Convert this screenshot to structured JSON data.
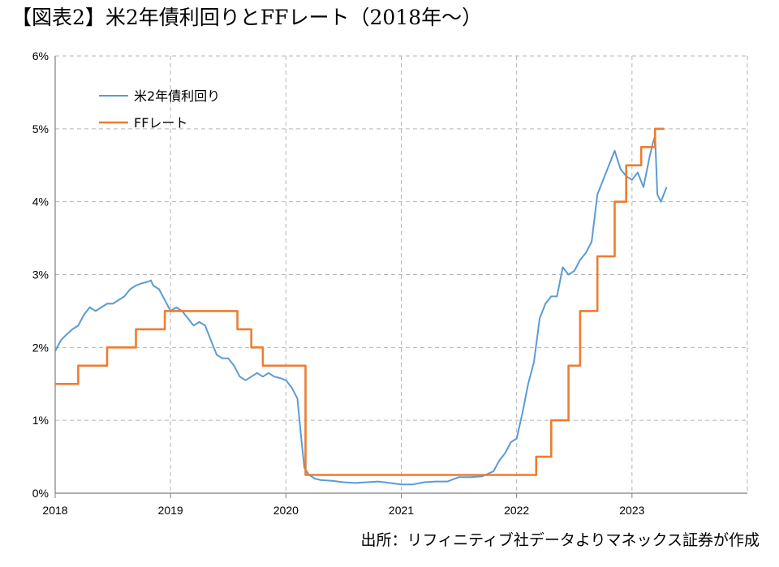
{
  "header": {
    "title": "【図表2】米2年債利回りとFFレート（2018年～）"
  },
  "footer": {
    "source": "出所：リフィニティブ社データよりマネックス証券が作成"
  },
  "chart_data": {
    "type": "line",
    "title": "【図表2】米2年債利回りとFFレート（2018年～）",
    "xlabel": "",
    "ylabel": "",
    "xlim": [
      2018,
      2024
    ],
    "ylim": [
      0,
      6
    ],
    "x_ticks": [
      "2018",
      "2019",
      "2020",
      "2021",
      "2022",
      "2023"
    ],
    "y_ticks": [
      "0%",
      "1%",
      "2%",
      "3%",
      "4%",
      "5%",
      "6%"
    ],
    "grid": true,
    "legend_position": "top-left",
    "series": [
      {
        "name": "米2年債利回り",
        "color": "#5b9bd5",
        "x": [
          2018.0,
          2018.05,
          2018.1,
          2018.15,
          2018.2,
          2018.25,
          2018.3,
          2018.35,
          2018.4,
          2018.45,
          2018.5,
          2018.55,
          2018.6,
          2018.65,
          2018.7,
          2018.75,
          2018.8,
          2018.83,
          2018.85,
          2018.9,
          2018.95,
          2019.0,
          2019.05,
          2019.1,
          2019.15,
          2019.2,
          2019.25,
          2019.3,
          2019.35,
          2019.4,
          2019.45,
          2019.5,
          2019.55,
          2019.6,
          2019.65,
          2019.7,
          2019.75,
          2019.8,
          2019.85,
          2019.9,
          2019.95,
          2020.0,
          2020.05,
          2020.1,
          2020.13,
          2020.16,
          2020.2,
          2020.25,
          2020.3,
          2020.4,
          2020.5,
          2020.6,
          2020.7,
          2020.8,
          2020.9,
          2021.0,
          2021.1,
          2021.2,
          2021.3,
          2021.4,
          2021.5,
          2021.6,
          2021.7,
          2021.8,
          2021.85,
          2021.9,
          2021.95,
          2022.0,
          2022.05,
          2022.1,
          2022.15,
          2022.2,
          2022.25,
          2022.3,
          2022.35,
          2022.4,
          2022.45,
          2022.5,
          2022.55,
          2022.6,
          2022.65,
          2022.7,
          2022.75,
          2022.8,
          2022.85,
          2022.9,
          2022.95,
          2023.0,
          2023.05,
          2023.1,
          2023.15,
          2023.18,
          2023.2,
          2023.22,
          2023.25,
          2023.3
        ],
        "y": [
          1.95,
          2.1,
          2.18,
          2.25,
          2.3,
          2.45,
          2.55,
          2.5,
          2.55,
          2.6,
          2.6,
          2.65,
          2.7,
          2.8,
          2.85,
          2.88,
          2.9,
          2.92,
          2.85,
          2.8,
          2.65,
          2.5,
          2.55,
          2.5,
          2.4,
          2.3,
          2.35,
          2.3,
          2.1,
          1.9,
          1.85,
          1.85,
          1.75,
          1.6,
          1.55,
          1.6,
          1.65,
          1.6,
          1.65,
          1.6,
          1.58,
          1.55,
          1.45,
          1.3,
          0.8,
          0.35,
          0.25,
          0.2,
          0.18,
          0.17,
          0.15,
          0.14,
          0.15,
          0.16,
          0.14,
          0.12,
          0.12,
          0.15,
          0.16,
          0.16,
          0.22,
          0.22,
          0.23,
          0.3,
          0.45,
          0.55,
          0.7,
          0.75,
          1.1,
          1.5,
          1.8,
          2.4,
          2.6,
          2.7,
          2.7,
          3.1,
          3.0,
          3.05,
          3.2,
          3.3,
          3.45,
          4.1,
          4.3,
          4.5,
          4.7,
          4.45,
          4.35,
          4.3,
          4.4,
          4.2,
          4.6,
          4.8,
          4.9,
          4.1,
          4.0,
          4.2
        ]
      },
      {
        "name": "FFレート",
        "color": "#ed7d31",
        "x": [
          2018.0,
          2018.2,
          2018.2,
          2018.45,
          2018.45,
          2018.7,
          2018.7,
          2018.95,
          2018.95,
          2019.58,
          2019.58,
          2019.7,
          2019.7,
          2019.8,
          2019.8,
          2020.17,
          2020.17,
          2020.2,
          2020.2,
          2022.17,
          2022.17,
          2022.3,
          2022.3,
          2022.45,
          2022.45,
          2022.55,
          2022.55,
          2022.7,
          2022.7,
          2022.85,
          2022.85,
          2022.95,
          2022.95,
          2023.08,
          2023.08,
          2023.2,
          2023.2,
          2023.28
        ],
        "y": [
          1.5,
          1.5,
          1.75,
          1.75,
          2.0,
          2.0,
          2.25,
          2.25,
          2.5,
          2.5,
          2.25,
          2.25,
          2.0,
          2.0,
          1.75,
          1.75,
          0.25,
          0.25,
          0.25,
          0.25,
          0.5,
          0.5,
          1.0,
          1.0,
          1.75,
          1.75,
          2.5,
          2.5,
          3.25,
          3.25,
          4.0,
          4.0,
          4.5,
          4.5,
          4.75,
          4.75,
          5.0,
          5.0
        ]
      }
    ]
  }
}
